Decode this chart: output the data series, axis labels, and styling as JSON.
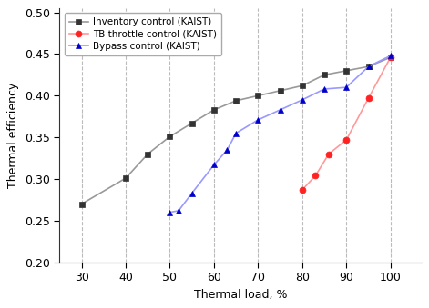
{
  "inventory_x": [
    30,
    40,
    45,
    50,
    55,
    60,
    65,
    70,
    75,
    80,
    85,
    90,
    95,
    100
  ],
  "inventory_y": [
    0.27,
    0.301,
    0.33,
    0.351,
    0.367,
    0.383,
    0.394,
    0.4,
    0.406,
    0.412,
    0.425,
    0.43,
    0.435,
    0.446
  ],
  "tb_x": [
    80,
    83,
    86,
    90,
    95,
    100
  ],
  "tb_y": [
    0.287,
    0.304,
    0.33,
    0.347,
    0.397,
    0.446
  ],
  "bypass_x": [
    50,
    52,
    55,
    60,
    63,
    65,
    70,
    75,
    80,
    85,
    90,
    95,
    100
  ],
  "bypass_y": [
    0.26,
    0.262,
    0.283,
    0.317,
    0.335,
    0.355,
    0.371,
    0.383,
    0.395,
    0.408,
    0.41,
    0.435,
    0.448
  ],
  "inventory_line_color": "#999999",
  "inventory_marker_color": "#333333",
  "tb_line_color": "#ff9999",
  "tb_marker_color": "#ff2222",
  "bypass_line_color": "#9999ff",
  "bypass_marker_color": "#0000cc",
  "xlabel": "Thermal load, %",
  "ylabel": "Thermal efficiency",
  "ylim": [
    0.2,
    0.505
  ],
  "xlim": [
    25,
    107
  ],
  "xticks": [
    30,
    40,
    50,
    60,
    70,
    80,
    90,
    100
  ],
  "yticks": [
    0.2,
    0.25,
    0.3,
    0.35,
    0.4,
    0.45,
    0.5
  ],
  "legend_inventory": "Inventory control (KAIST)",
  "legend_tb": "TB throttle control (KAIST)",
  "legend_bypass": "Bypass control (KAIST)",
  "grid_color": "#bbbbbb",
  "bg_color": "#ffffff"
}
